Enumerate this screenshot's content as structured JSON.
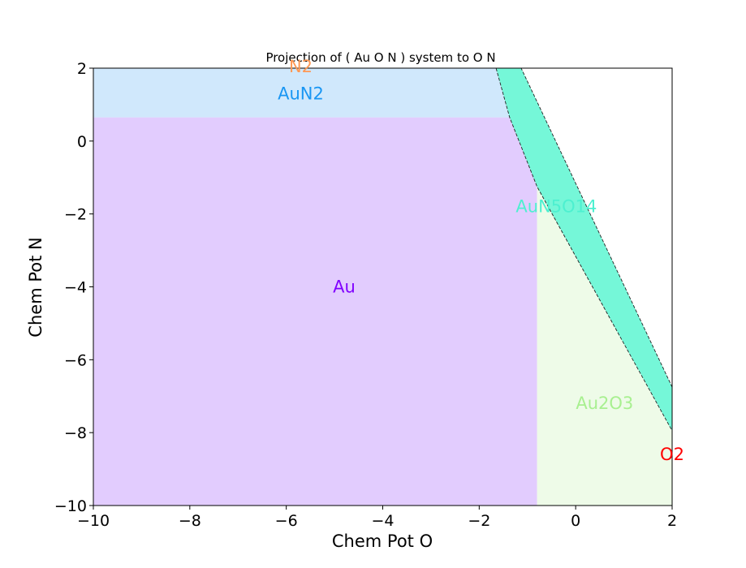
{
  "chart_data": {
    "type": "area",
    "title": "Projection of ( Au O N ) system to O N",
    "xlabel": "Chem Pot O",
    "ylabel": "Chem Pot N",
    "xlim": [
      -10,
      2
    ],
    "ylim": [
      -10,
      2
    ],
    "x_ticks": [
      -10,
      -8,
      -6,
      -4,
      -2,
      0,
      2
    ],
    "y_ticks": [
      -10,
      -8,
      -6,
      -4,
      -2,
      0,
      2
    ],
    "x_tick_labels": [
      "−10",
      "−8",
      "−6",
      "−4",
      "−2",
      "0",
      "2"
    ],
    "y_tick_labels": [
      "−10",
      "−8",
      "−6",
      "−4",
      "−2",
      "0",
      "2"
    ],
    "grid": false,
    "regions": [
      {
        "name": "Au",
        "color": "#e2ccfe",
        "label_color": "#8000ff",
        "label_pos": [
          -4.8,
          -4.0
        ],
        "polygon": [
          [
            -10,
            -10
          ],
          [
            -0.8,
            -10
          ],
          [
            -0.8,
            -1.25
          ],
          [
            -1.37,
            0.65
          ],
          [
            -10,
            0.65
          ]
        ]
      },
      {
        "name": "AuN2",
        "color": "#d0e8fc",
        "label_color": "#1996f3",
        "label_pos": [
          -5.7,
          1.3
        ],
        "polygon": [
          [
            -10,
            0.65
          ],
          [
            -1.37,
            0.65
          ],
          [
            -1.65,
            2
          ],
          [
            -10,
            2
          ]
        ]
      },
      {
        "name": "Au2O3",
        "color": "#eefbe8",
        "label_color": "#a8f090",
        "label_pos": [
          0.6,
          -7.2
        ],
        "polygon": [
          [
            -0.8,
            -10
          ],
          [
            2,
            -10
          ],
          [
            2,
            -7.95
          ],
          [
            -0.8,
            -1.25
          ]
        ]
      },
      {
        "name": "AuN5O14",
        "color": "#75f7d8",
        "label_color": "#4df0d0",
        "label_pos": [
          -0.4,
          -1.8
        ],
        "outline": "dashed",
        "polygon": [
          [
            -1.65,
            2
          ],
          [
            -1.13,
            2
          ],
          [
            2,
            -6.75
          ],
          [
            2,
            -7.95
          ],
          [
            -0.8,
            -1.25
          ],
          [
            -1.37,
            0.65
          ]
        ]
      }
    ],
    "point_labels": [
      {
        "name": "N2",
        "color": "#ff9955",
        "pos": [
          -5.7,
          2.05
        ]
      },
      {
        "name": "O2",
        "color": "#ff0000",
        "pos": [
          2,
          -8.6
        ]
      }
    ]
  }
}
